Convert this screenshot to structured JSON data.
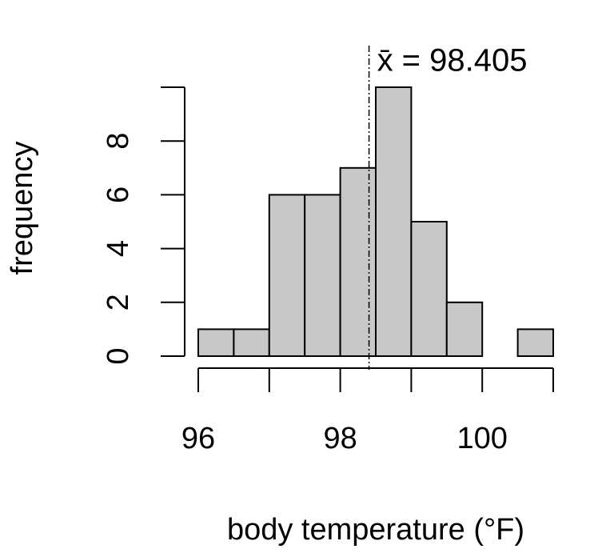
{
  "chart_data": {
    "type": "histogram",
    "xlabel": "body temperature (°F)",
    "ylabel": "frequency",
    "bins": [
      96,
      96.5,
      97,
      97.5,
      98,
      98.5,
      99,
      99.5,
      100,
      100.5,
      101
    ],
    "values": [
      1,
      1,
      6,
      6,
      7,
      10,
      5,
      2,
      0,
      1
    ],
    "color": "#c8c8c8",
    "xlim": [
      96,
      101
    ],
    "xticks": [
      96,
      98,
      100
    ],
    "xminorticks": [
      97,
      99,
      101
    ],
    "ylim": [
      0,
      10
    ],
    "yticks": [
      0,
      2,
      4,
      6,
      8
    ],
    "mean": {
      "value": 98.405,
      "label": "x̄ = 98.405"
    }
  }
}
